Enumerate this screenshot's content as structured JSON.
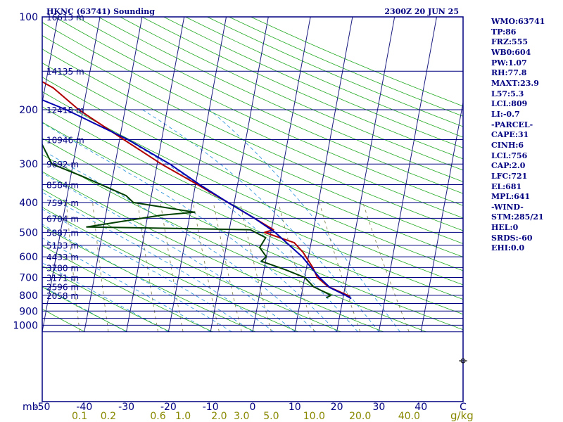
{
  "header": {
    "station_title": "HKNC (63741) Sounding",
    "valid_time": "2300Z 20 JUN 25"
  },
  "indices": [
    "WMO:63741",
    "TP:86",
    "FRZ:555",
    "WB0:604",
    "PW:1.07",
    "RH:77.8",
    "MAXT:23.9",
    "L57:5.3",
    "LCL:809",
    "LI:-0.7",
    "-PARCEL-",
    "CAPE:31",
    "CINH:6",
    "LCL:756",
    "CAP:2.0",
    "LFC:721",
    "EL:681",
    "MPL:641",
    "-WIND-",
    "STM:285/21",
    "HEL:0",
    "SRDS:-60",
    "EHI:0.0"
  ],
  "colors": {
    "frame": "#000080",
    "temperature": "#b00000",
    "dewpoint": "#004000",
    "parcel": "#0000b0",
    "isotherm": "#1a1a80",
    "dry_adiabat": "#22aa22",
    "moist_adiabat": "#3399dd",
    "mixing_ratio": "#888855",
    "bottom_labels": "#888800"
  },
  "chart_data": {
    "type": "line",
    "title": "HKNC (63741) Sounding",
    "subtitle": "2300Z 20 JUN 25",
    "y_axis_unit": "mb",
    "y_ticks": [
      100,
      200,
      300,
      400,
      500,
      600,
      700,
      800,
      900,
      1000
    ],
    "ylim": [
      100,
      1050
    ],
    "y_scale": "log",
    "x_ticks": [
      "-50",
      "-40",
      "-30",
      "-20",
      "-10",
      "0",
      "10",
      "20",
      "30",
      "40",
      "C"
    ],
    "x_tick_values": [
      -50,
      -40,
      -30,
      -20,
      -10,
      0,
      10,
      20,
      30,
      40
    ],
    "mixing_ratio_unit": "g/kg",
    "mixing_ratio_labels": [
      "0.1",
      "0.2",
      "0.6",
      "1.0",
      "2.0",
      "3.0",
      "5.0",
      "10.0",
      "20.0",
      "40.0"
    ],
    "height_labels": [
      {
        "p": 100,
        "label": "16613 m"
      },
      {
        "p": 150,
        "label": "14135 m"
      },
      {
        "p": 200,
        "label": "12415 m"
      },
      {
        "p": 250,
        "label": "10946 m"
      },
      {
        "p": 300,
        "label": "9692 m"
      },
      {
        "p": 350,
        "label": "8584 m"
      },
      {
        "p": 400,
        "label": "7597 m"
      },
      {
        "p": 450,
        "label": "6704 m"
      },
      {
        "p": 500,
        "label": "5887 m"
      },
      {
        "p": 550,
        "label": "5133 m"
      },
      {
        "p": 600,
        "label": "4433 m"
      },
      {
        "p": 650,
        "label": "3780 m"
      },
      {
        "p": 700,
        "label": "3171 m"
      },
      {
        "p": 750,
        "label": "2596 m"
      },
      {
        "p": 800,
        "label": "2058 m"
      }
    ],
    "series": [
      {
        "key": "temperature",
        "points": [
          [
            100,
            -80.3
          ],
          [
            120,
            -78.6
          ],
          [
            128,
            -74.6
          ],
          [
            145,
            -68.0
          ],
          [
            170,
            -58.0
          ],
          [
            200,
            -51.0
          ],
          [
            250,
            -39.0
          ],
          [
            300,
            -29.0
          ],
          [
            350,
            -19.5
          ],
          [
            400,
            -11.5
          ],
          [
            450,
            -4.5
          ],
          [
            490,
            0.5
          ],
          [
            500,
            -1.5
          ],
          [
            540,
            6.0
          ],
          [
            580,
            8.5
          ],
          [
            650,
            11.5
          ],
          [
            700,
            13.0
          ],
          [
            750,
            16.0
          ],
          [
            800,
            21.0
          ],
          [
            810,
            21.6
          ]
        ]
      },
      {
        "key": "dewpoint",
        "points": [
          [
            100,
            -86.0
          ],
          [
            115,
            -86.6
          ],
          [
            135,
            -84.0
          ],
          [
            160,
            -79.0
          ],
          [
            200,
            -70.0
          ],
          [
            250,
            -59.0
          ],
          [
            300,
            -55.0
          ],
          [
            330,
            -47.0
          ],
          [
            380,
            -36.0
          ],
          [
            400,
            -34.0
          ],
          [
            430,
            -19.0
          ],
          [
            440,
            -27.0
          ],
          [
            480,
            -44.0
          ],
          [
            490,
            -5.0
          ],
          [
            520,
            -1.0
          ],
          [
            560,
            -2.0
          ],
          [
            600,
            0.0
          ],
          [
            620,
            -1.0
          ],
          [
            660,
            5.0
          ],
          [
            700,
            10.0
          ],
          [
            750,
            12.5
          ],
          [
            800,
            17.0
          ],
          [
            815,
            16.0
          ]
        ]
      },
      {
        "key": "parcel",
        "points": [
          [
            115,
            -95.0
          ],
          [
            150,
            -78.0
          ],
          [
            200,
            -54.0
          ],
          [
            250,
            -38.0
          ],
          [
            300,
            -27.0
          ],
          [
            350,
            -19.0
          ],
          [
            400,
            -11.5
          ],
          [
            450,
            -4.5
          ],
          [
            500,
            1.0
          ],
          [
            600,
            8.5
          ],
          [
            700,
            13.5
          ],
          [
            756,
            16.5
          ],
          [
            800,
            20.5
          ],
          [
            820,
            22.0
          ]
        ]
      }
    ]
  }
}
